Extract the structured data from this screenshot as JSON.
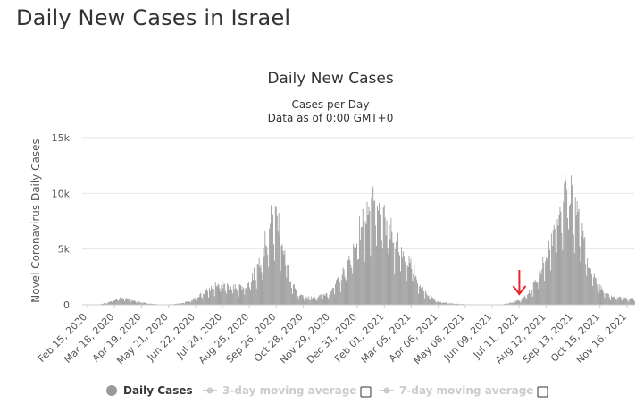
{
  "page_title": "Daily New Cases in Israel",
  "legend": {
    "daily": "Daily Cases",
    "avg3": "3-day moving average",
    "avg7": "7-day moving average"
  },
  "colors": {
    "bars": "#9a9a9a",
    "grid": "#e6e6e6",
    "legend_inactive": "#cccccc",
    "arrow": "#e8262a"
  },
  "chart_data": {
    "type": "bar",
    "title": "Daily New Cases",
    "subtitle": "Cases per Day",
    "subtitle2": "Data as of 0:00 GMT+0",
    "ylabel": "Novel Coronavirus Daily Cases",
    "xlabel": "",
    "ylim": [
      0,
      15000
    ],
    "yticks": [
      0,
      5000,
      10000,
      15000
    ],
    "ytick_labels": [
      "0",
      "5k",
      "10k",
      "15k"
    ],
    "grid": true,
    "legend_position": "bottom",
    "x_range": [
      "2020-02-15",
      "2021-11-20"
    ],
    "xtick_labels": [
      "Feb 15, 2020",
      "Mar 18, 2020",
      "Apr 19, 2020",
      "May 21, 2020",
      "Jun 22, 2020",
      "Jul 24, 2020",
      "Aug 25, 2020",
      "Sep 26, 2020",
      "Oct 28, 2020",
      "Nov 29, 2020",
      "Dec 31, 2020",
      "Feb 01, 2021",
      "Mar 05, 2021",
      "Apr 06, 2021",
      "May 08, 2021",
      "Jun 09, 2021",
      "Jul 11, 2021",
      "Aug 12, 2021",
      "Sep 13, 2021",
      "Oct 15, 2021",
      "Nov 16, 2021"
    ],
    "series": [
      {
        "name": "Daily Cases",
        "points": [
          [
            "2020-02-15",
            0
          ],
          [
            "2020-03-05",
            20
          ],
          [
            "2020-03-18",
            250
          ],
          [
            "2020-03-25",
            500
          ],
          [
            "2020-04-01",
            650
          ],
          [
            "2020-04-10",
            480
          ],
          [
            "2020-04-20",
            280
          ],
          [
            "2020-05-01",
            130
          ],
          [
            "2020-05-15",
            30
          ],
          [
            "2020-05-30",
            50
          ],
          [
            "2020-06-10",
            150
          ],
          [
            "2020-06-22",
            400
          ],
          [
            "2020-07-01",
            900
          ],
          [
            "2020-07-10",
            1300
          ],
          [
            "2020-07-20",
            1800
          ],
          [
            "2020-07-28",
            1800
          ],
          [
            "2020-08-10",
            1600
          ],
          [
            "2020-08-25",
            1700
          ],
          [
            "2020-09-05",
            3200
          ],
          [
            "2020-09-15",
            5500
          ],
          [
            "2020-09-23",
            7800
          ],
          [
            "2020-09-30",
            8000
          ],
          [
            "2020-10-07",
            5000
          ],
          [
            "2020-10-15",
            2000
          ],
          [
            "2020-10-25",
            800
          ],
          [
            "2020-11-05",
            650
          ],
          [
            "2020-11-15",
            700
          ],
          [
            "2020-11-29",
            1100
          ],
          [
            "2020-12-10",
            2200
          ],
          [
            "2020-12-20",
            3500
          ],
          [
            "2020-12-31",
            6000
          ],
          [
            "2021-01-10",
            8500
          ],
          [
            "2021-01-18",
            9000
          ],
          [
            "2021-01-28",
            8000
          ],
          [
            "2021-02-05",
            7000
          ],
          [
            "2021-02-15",
            6000
          ],
          [
            "2021-02-25",
            4500
          ],
          [
            "2021-03-05",
            3500
          ],
          [
            "2021-03-15",
            1800
          ],
          [
            "2021-03-25",
            800
          ],
          [
            "2021-04-06",
            300
          ],
          [
            "2021-04-20",
            120
          ],
          [
            "2021-05-08",
            40
          ],
          [
            "2021-06-01",
            10
          ],
          [
            "2021-06-20",
            40
          ],
          [
            "2021-07-01",
            250
          ],
          [
            "2021-07-11",
            450
          ],
          [
            "2021-07-22",
            1300
          ],
          [
            "2021-08-01",
            2800
          ],
          [
            "2021-08-12",
            5500
          ],
          [
            "2021-08-22",
            8000
          ],
          [
            "2021-09-01",
            10500
          ],
          [
            "2021-09-08",
            10500
          ],
          [
            "2021-09-15",
            8000
          ],
          [
            "2021-09-25",
            4500
          ],
          [
            "2021-10-05",
            2200
          ],
          [
            "2021-10-15",
            1300
          ],
          [
            "2021-10-25",
            800
          ],
          [
            "2021-11-05",
            600
          ],
          [
            "2021-11-20",
            550
          ]
        ]
      }
    ],
    "annotation": {
      "type": "arrow",
      "date": "2021-07-09"
    }
  }
}
